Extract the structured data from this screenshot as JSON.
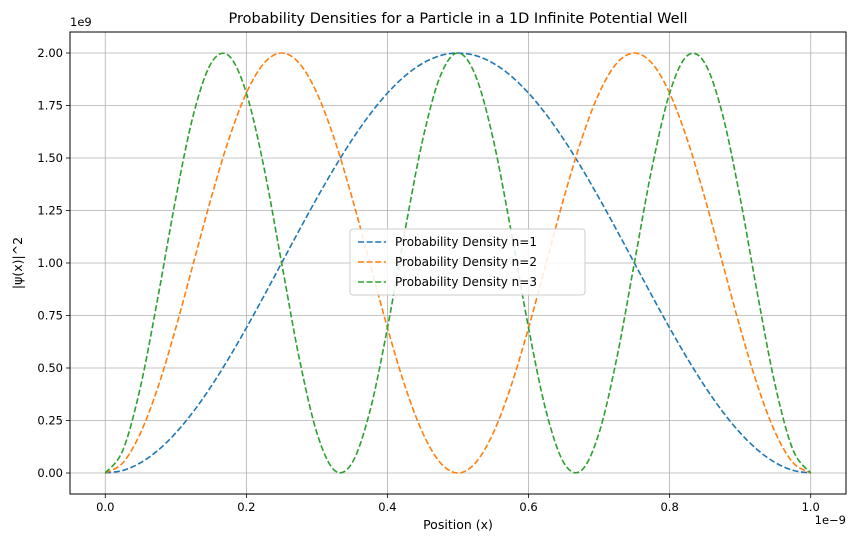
{
  "chart_data": {
    "type": "line",
    "title": "Probability Densities for a Particle in a 1D Infinite Potential Well",
    "xlabel": "Position (x)",
    "ylabel": "|ψ(x)|^2",
    "x_offset_label": "1e−9",
    "y_offset_label": "1e9",
    "xlim": [
      -0.05,
      1.05
    ],
    "ylim": [
      -0.1,
      2.1
    ],
    "x_ticks": [
      0.0,
      0.2,
      0.4,
      0.6,
      0.8,
      1.0
    ],
    "x_tick_labels": [
      "0.0",
      "0.2",
      "0.4",
      "0.6",
      "0.8",
      "1.0"
    ],
    "y_ticks": [
      0.0,
      0.25,
      0.5,
      0.75,
      1.0,
      1.25,
      1.5,
      1.75,
      2.0
    ],
    "y_tick_labels": [
      "0.00",
      "0.25",
      "0.50",
      "0.75",
      "1.00",
      "1.25",
      "1.50",
      "1.75",
      "2.00"
    ],
    "grid": true,
    "legend_position": "center",
    "line_style": "dashed",
    "x": [
      0.0,
      0.025,
      0.05,
      0.075,
      0.1,
      0.125,
      0.15,
      0.175,
      0.2,
      0.225,
      0.25,
      0.275,
      0.3,
      0.325,
      0.35,
      0.375,
      0.4,
      0.425,
      0.45,
      0.475,
      0.5,
      0.525,
      0.55,
      0.575,
      0.6,
      0.625,
      0.65,
      0.675,
      0.7,
      0.725,
      0.75,
      0.775,
      0.8,
      0.825,
      0.85,
      0.875,
      0.9,
      0.925,
      0.95,
      0.975,
      1.0
    ],
    "series": [
      {
        "name": "Probability Density n=1",
        "color": "#1f77b4",
        "values": [
          0.0,
          0.0123,
          0.0489,
          0.109,
          0.191,
          0.2929,
          0.4122,
          0.546,
          0.691,
          0.8436,
          1.0,
          1.1564,
          1.309,
          1.454,
          1.5878,
          1.7071,
          1.809,
          1.891,
          1.9511,
          1.9877,
          2.0,
          1.9877,
          1.9511,
          1.891,
          1.809,
          1.7071,
          1.5878,
          1.454,
          1.309,
          1.1564,
          1.0,
          0.8436,
          0.691,
          0.546,
          0.4122,
          0.2929,
          0.191,
          0.109,
          0.0489,
          0.0123,
          0.0
        ]
      },
      {
        "name": "Probability Density n=2",
        "color": "#ff7f0e",
        "values": [
          0.0,
          0.0489,
          0.191,
          0.4122,
          0.691,
          1.0,
          1.309,
          1.5878,
          1.809,
          1.9511,
          2.0,
          1.9511,
          1.809,
          1.5878,
          1.309,
          1.0,
          0.691,
          0.4122,
          0.191,
          0.0489,
          0.0,
          0.0489,
          0.191,
          0.4122,
          0.691,
          1.0,
          1.309,
          1.5878,
          1.809,
          1.9511,
          2.0,
          1.9511,
          1.809,
          1.5878,
          1.309,
          1.0,
          0.691,
          0.4122,
          0.191,
          0.0489,
          0.0
        ]
      },
      {
        "name": "Probability Density n=3",
        "color": "#2ca02c",
        "values": [
          0.0,
          0.109,
          0.4122,
          0.8436,
          1.309,
          1.7071,
          1.9511,
          1.9877,
          1.809,
          1.454,
          1.0,
          0.546,
          0.191,
          0.0123,
          0.0489,
          0.2929,
          0.691,
          1.1564,
          1.5878,
          1.891,
          2.0,
          1.891,
          1.5878,
          1.1564,
          0.691,
          0.2929,
          0.0489,
          0.0123,
          0.191,
          0.546,
          1.0,
          1.454,
          1.809,
          1.9877,
          1.9511,
          1.7071,
          1.309,
          0.8436,
          0.4122,
          0.109,
          0.0
        ]
      }
    ]
  }
}
